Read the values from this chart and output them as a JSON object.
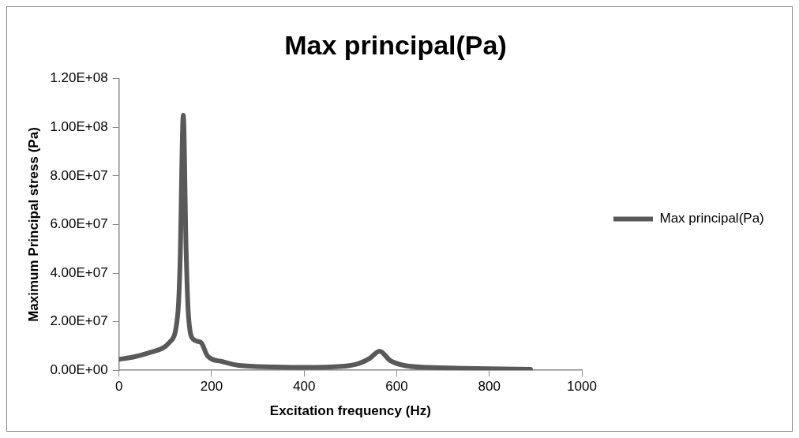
{
  "chart_data": {
    "type": "line",
    "title": "Max principal(Pa)",
    "xlabel": "Excitation frequency (Hz)",
    "ylabel": "Maximum Principal stress (Pa)",
    "xlim": [
      0,
      1000
    ],
    "xticks": [
      0,
      200,
      400,
      600,
      800,
      1000
    ],
    "ylim": [
      0,
      120000000
    ],
    "yticks": [
      {
        "value": 0,
        "label": "0.00E+00"
      },
      {
        "value": 20000000,
        "label": "2.00E+07"
      },
      {
        "value": 40000000,
        "label": "4.00E+07"
      },
      {
        "value": 60000000,
        "label": "6.00E+07"
      },
      {
        "value": 80000000,
        "label": "8.00E+07"
      },
      {
        "value": 100000000,
        "label": "1.00E+08"
      },
      {
        "value": 120000000,
        "label": "1.20E+08"
      }
    ],
    "grid": false,
    "legend": "right",
    "marker": "none",
    "line_style": "solid",
    "series": [
      {
        "name": "Max principal(Pa)",
        "color": "#595959",
        "x": [
          0,
          32,
          70,
          109,
          127,
          132,
          139,
          145,
          150,
          161,
          177,
          191,
          223,
          259,
          336,
          400,
          480,
          518,
          541,
          563,
          586,
          616,
          668,
          745,
          889
        ],
        "values": [
          4500000,
          5500000,
          7500000,
          11500000,
          23000000,
          44000000,
          105000000,
          50000000,
          23000000,
          12700000,
          11500000,
          6000000,
          3600000,
          2000000,
          1400000,
          1200000,
          1600000,
          2800000,
          4800000,
          7900000,
          4000000,
          2000000,
          1200000,
          800000,
          400000
        ]
      }
    ]
  }
}
